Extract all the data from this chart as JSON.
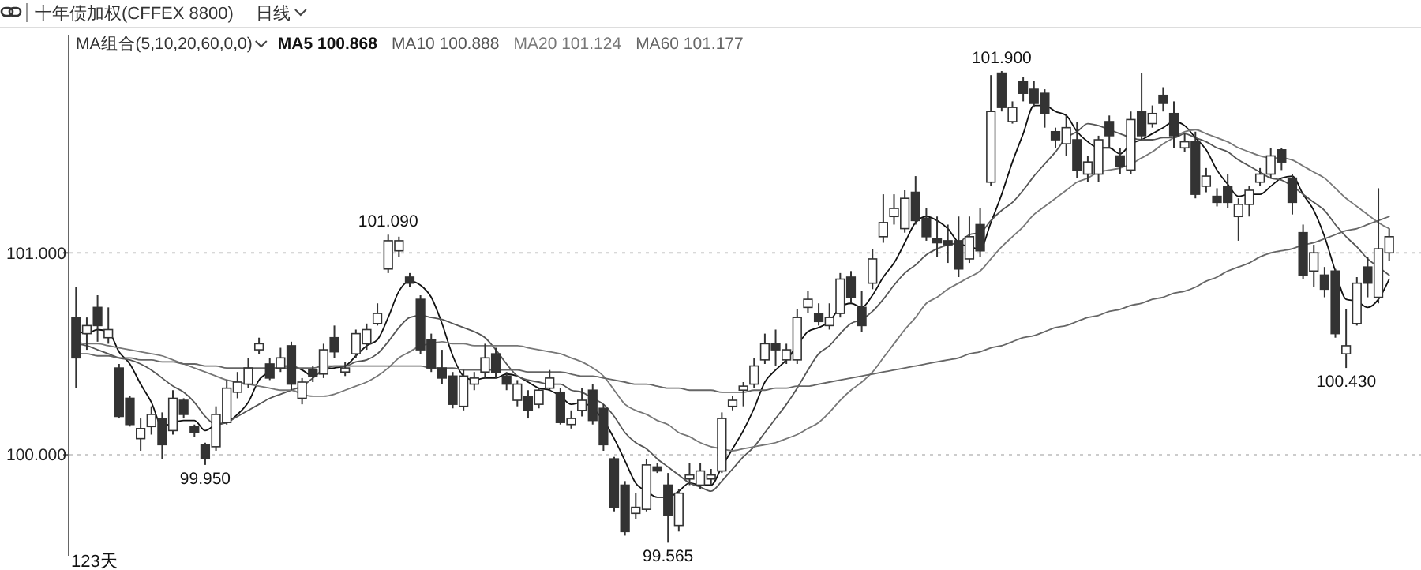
{
  "chart_data": {
    "type": "candlestick",
    "title": "十年债加权(CFFEX 8800)",
    "subtitle": "日线",
    "annotations": [
      "MA组合(5,10,20,60,0,0)",
      "123天",
      {
        "text": "101.090",
        "y": 101.09
      },
      {
        "text": "99.950",
        "y": 99.95
      },
      {
        "text": "99.565",
        "y": 99.565
      },
      {
        "text": "101.900",
        "y": 101.9
      },
      {
        "text": "100.430",
        "y": 100.43
      }
    ],
    "categories": [
      null,
      null,
      null,
      null,
      null,
      null,
      null,
      null,
      null,
      null,
      null,
      null,
      null,
      null,
      null,
      null,
      null,
      null,
      null,
      null,
      null,
      null,
      null,
      null,
      null,
      null,
      null,
      null,
      null,
      null,
      null,
      null,
      null,
      null,
      null,
      null,
      null,
      null,
      null,
      null,
      null,
      null,
      null,
      null,
      null,
      null,
      null,
      null,
      null,
      null,
      null,
      null,
      null,
      null,
      null,
      null,
      null,
      null,
      null,
      null,
      null,
      null,
      null,
      null,
      null,
      null,
      null,
      null,
      null,
      null,
      null,
      null,
      null,
      null,
      null,
      null,
      null,
      null,
      null,
      null,
      null,
      null,
      null,
      null,
      null,
      null,
      null,
      null,
      null,
      null,
      null,
      null,
      null,
      null,
      null,
      null,
      null,
      null,
      null,
      null,
      null,
      null,
      null,
      null,
      null,
      null,
      null,
      null,
      null,
      null,
      null,
      null,
      null,
      null,
      null,
      null,
      null,
      null,
      null,
      null,
      null,
      null,
      null
    ],
    "ohlc": [
      [
        100.68,
        100.83,
        100.33,
        100.48
      ],
      [
        100.6,
        100.68,
        100.52,
        100.64
      ],
      [
        100.73,
        100.79,
        100.56,
        100.64
      ],
      [
        100.58,
        100.73,
        100.55,
        100.62
      ],
      [
        100.43,
        100.45,
        100.18,
        100.19
      ],
      [
        100.28,
        100.29,
        100.14,
        100.15
      ],
      [
        100.08,
        100.18,
        100.02,
        100.13
      ],
      [
        100.14,
        100.24,
        100.1,
        100.2
      ],
      [
        100.18,
        100.21,
        99.98,
        100.05
      ],
      [
        100.12,
        100.32,
        100.1,
        100.28
      ],
      [
        100.27,
        100.28,
        100.18,
        100.2
      ],
      [
        100.14,
        100.15,
        100.09,
        100.11
      ],
      [
        100.05,
        100.06,
        99.95,
        99.98
      ],
      [
        100.04,
        100.24,
        100.02,
        100.2
      ],
      [
        100.16,
        100.37,
        100.15,
        100.33
      ],
      [
        100.31,
        100.41,
        100.28,
        100.36
      ],
      [
        100.35,
        100.48,
        100.33,
        100.43
      ],
      [
        100.52,
        100.58,
        100.5,
        100.55
      ],
      [
        100.45,
        100.48,
        100.37,
        100.38
      ],
      [
        100.43,
        100.53,
        100.41,
        100.48
      ],
      [
        100.54,
        100.56,
        100.32,
        100.35
      ],
      [
        100.28,
        100.38,
        100.25,
        100.36
      ],
      [
        100.42,
        100.44,
        100.36,
        100.39
      ],
      [
        100.4,
        100.55,
        100.38,
        100.52
      ],
      [
        100.58,
        100.64,
        100.48,
        100.51
      ],
      [
        100.41,
        100.46,
        100.39,
        100.43
      ],
      [
        100.5,
        100.62,
        100.48,
        100.6
      ],
      [
        100.55,
        100.65,
        100.52,
        100.62
      ],
      [
        100.65,
        100.75,
        100.64,
        100.7
      ],
      [
        100.92,
        101.09,
        100.9,
        101.06
      ],
      [
        101.01,
        101.08,
        100.98,
        101.06
      ],
      [
        100.88,
        100.9,
        100.83,
        100.85
      ],
      [
        100.77,
        100.79,
        100.5,
        100.52
      ],
      [
        100.57,
        100.6,
        100.41,
        100.43
      ],
      [
        100.43,
        100.52,
        100.35,
        100.38
      ],
      [
        100.39,
        100.41,
        100.23,
        100.25
      ],
      [
        100.24,
        100.42,
        100.22,
        100.39
      ],
      [
        100.35,
        100.41,
        100.32,
        100.38
      ],
      [
        100.41,
        100.55,
        100.38,
        100.48
      ],
      [
        100.5,
        100.53,
        100.38,
        100.41
      ],
      [
        100.39,
        100.41,
        100.32,
        100.35
      ],
      [
        100.27,
        100.37,
        100.24,
        100.35
      ],
      [
        100.29,
        100.32,
        100.18,
        100.22
      ],
      [
        100.25,
        100.33,
        100.23,
        100.32
      ],
      [
        100.33,
        100.42,
        100.32,
        100.38
      ],
      [
        100.31,
        100.33,
        100.15,
        100.16
      ],
      [
        100.15,
        100.22,
        100.13,
        100.18
      ],
      [
        100.22,
        100.33,
        100.19,
        100.27
      ],
      [
        100.32,
        100.35,
        100.15,
        100.17
      ],
      [
        100.23,
        100.25,
        100.02,
        100.05
      ],
      [
        99.98,
        99.99,
        99.72,
        99.74
      ],
      [
        99.85,
        99.87,
        99.6,
        99.62
      ],
      [
        99.71,
        99.81,
        99.68,
        99.74
      ],
      [
        99.73,
        99.98,
        99.72,
        99.95
      ],
      [
        99.94,
        99.96,
        99.91,
        99.92
      ],
      [
        99.85,
        99.91,
        99.565,
        99.7
      ],
      [
        99.65,
        99.83,
        99.62,
        99.81
      ],
      [
        99.88,
        99.96,
        99.85,
        99.9
      ],
      [
        99.85,
        99.96,
        99.83,
        99.92
      ],
      [
        99.88,
        99.93,
        99.85,
        99.9
      ],
      [
        99.92,
        100.21,
        99.91,
        100.18
      ],
      [
        100.24,
        100.29,
        100.22,
        100.27
      ],
      [
        100.32,
        100.36,
        100.24,
        100.34
      ],
      [
        100.35,
        100.48,
        100.33,
        100.44
      ],
      [
        100.47,
        100.6,
        100.45,
        100.55
      ],
      [
        100.55,
        100.62,
        100.44,
        100.52
      ],
      [
        100.47,
        100.55,
        100.45,
        100.52
      ],
      [
        100.47,
        100.72,
        100.45,
        100.68
      ],
      [
        100.73,
        100.81,
        100.7,
        100.77
      ],
      [
        100.7,
        100.75,
        100.64,
        100.66
      ],
      [
        100.64,
        100.75,
        100.62,
        100.68
      ],
      [
        100.7,
        100.9,
        100.68,
        100.87
      ],
      [
        100.88,
        100.91,
        100.75,
        100.78
      ],
      [
        100.73,
        100.81,
        100.61,
        100.64
      ],
      [
        100.85,
        101.02,
        100.82,
        100.97
      ],
      [
        101.08,
        101.29,
        101.05,
        101.15
      ],
      [
        101.18,
        101.29,
        101.14,
        101.22
      ],
      [
        101.12,
        101.31,
        101.1,
        101.27
      ],
      [
        101.3,
        101.38,
        101.14,
        101.16
      ],
      [
        101.17,
        101.22,
        101.06,
        101.08
      ],
      [
        101.07,
        101.18,
        100.98,
        101.05
      ],
      [
        101.06,
        101.14,
        100.95,
        101.04
      ],
      [
        101.06,
        101.18,
        100.88,
        100.92
      ],
      [
        100.97,
        101.18,
        100.95,
        101.08
      ],
      [
        101.14,
        101.22,
        100.98,
        101.01
      ],
      [
        101.35,
        101.88,
        101.33,
        101.7
      ],
      [
        101.89,
        101.9,
        101.7,
        101.72
      ],
      [
        101.65,
        101.75,
        101.64,
        101.72
      ],
      [
        101.85,
        101.87,
        101.75,
        101.79
      ],
      [
        101.81,
        101.85,
        101.72,
        101.74
      ],
      [
        101.79,
        101.81,
        101.62,
        101.69
      ],
      [
        101.6,
        101.62,
        101.52,
        101.56
      ],
      [
        101.54,
        101.68,
        101.48,
        101.62
      ],
      [
        101.56,
        101.65,
        101.37,
        101.41
      ],
      [
        101.39,
        101.48,
        101.35,
        101.45
      ],
      [
        101.39,
        101.58,
        101.35,
        101.56
      ],
      [
        101.65,
        101.68,
        101.52,
        101.58
      ],
      [
        101.48,
        101.52,
        101.39,
        101.43
      ],
      [
        101.41,
        101.7,
        101.39,
        101.66
      ],
      [
        101.7,
        101.89,
        101.56,
        101.58
      ],
      [
        101.64,
        101.73,
        101.62,
        101.69
      ],
      [
        101.78,
        101.82,
        101.7,
        101.74
      ],
      [
        101.69,
        101.75,
        101.52,
        101.58
      ],
      [
        101.52,
        101.59,
        101.5,
        101.55
      ],
      [
        101.55,
        101.6,
        101.27,
        101.29
      ],
      [
        101.33,
        101.42,
        101.3,
        101.38
      ],
      [
        101.28,
        101.32,
        101.23,
        101.25
      ],
      [
        101.33,
        101.39,
        101.22,
        101.25
      ],
      [
        101.18,
        101.27,
        101.06,
        101.24
      ],
      [
        101.24,
        101.33,
        101.18,
        101.31
      ],
      [
        101.35,
        101.42,
        101.33,
        101.39
      ],
      [
        101.39,
        101.52,
        101.37,
        101.48
      ],
      [
        101.51,
        101.52,
        101.41,
        101.45
      ],
      [
        101.37,
        101.39,
        101.19,
        101.25
      ],
      [
        101.1,
        101.14,
        100.87,
        100.89
      ],
      [
        100.91,
        101.04,
        100.83,
        101.0
      ],
      [
        100.89,
        100.93,
        100.78,
        100.82
      ],
      [
        100.91,
        100.92,
        100.58,
        100.6
      ],
      [
        100.5,
        100.72,
        100.43,
        100.54
      ],
      [
        100.65,
        100.88,
        100.64,
        100.85
      ],
      [
        100.93,
        100.98,
        100.78,
        100.85
      ],
      [
        100.78,
        101.32,
        100.75,
        101.02
      ],
      [
        101.0,
        101.12,
        100.96,
        101.08
      ]
    ],
    "series": [
      {
        "name": "MA5 100.868",
        "type": "line",
        "color": "#111111",
        "values": [
          100.62,
          100.6,
          100.62,
          100.61,
          100.51,
          100.45,
          100.35,
          100.26,
          100.14,
          100.16,
          100.17,
          100.17,
          100.12,
          100.15,
          100.16,
          100.2,
          100.26,
          100.37,
          100.41,
          100.44,
          100.44,
          100.42,
          100.39,
          100.42,
          100.43,
          100.44,
          100.49,
          100.54,
          100.57,
          100.68,
          100.81,
          100.86,
          100.84,
          100.78,
          100.65,
          100.49,
          100.39,
          100.37,
          100.38,
          100.38,
          100.4,
          100.39,
          100.36,
          100.33,
          100.32,
          100.29,
          100.25,
          100.26,
          100.23,
          100.17,
          100.08,
          99.97,
          99.86,
          99.82,
          99.79,
          99.79,
          99.82,
          99.86,
          99.85,
          99.85,
          99.94,
          100.03,
          100.12,
          100.23,
          100.36,
          100.42,
          100.47,
          100.54,
          100.61,
          100.63,
          100.66,
          100.73,
          100.75,
          100.73,
          100.79,
          100.88,
          100.95,
          101.05,
          101.15,
          101.18,
          101.16,
          101.12,
          101.05,
          101.03,
          101.02,
          101.15,
          101.29,
          101.45,
          101.59,
          101.73,
          101.73,
          101.7,
          101.68,
          101.6,
          101.55,
          101.52,
          101.52,
          101.49,
          101.54,
          101.56,
          101.59,
          101.62,
          101.65,
          101.63,
          101.57,
          101.51,
          101.41,
          101.34,
          101.28,
          101.29,
          101.29,
          101.33,
          101.37,
          101.38,
          101.29,
          101.21,
          101.08,
          100.91,
          100.77,
          100.76,
          100.73,
          100.77,
          100.87
        ]
      },
      {
        "name": "MA10 100.888",
        "type": "line",
        "color": "#555555",
        "values": [
          100.55,
          100.54,
          100.52,
          100.5,
          100.48,
          100.47,
          100.45,
          100.42,
          100.38,
          100.34,
          100.31,
          100.26,
          100.19,
          100.15,
          100.16,
          100.19,
          100.22,
          100.25,
          100.28,
          100.3,
          100.32,
          100.34,
          100.38,
          100.42,
          100.44,
          100.44,
          100.46,
          100.47,
          100.5,
          100.56,
          100.63,
          100.68,
          100.69,
          100.68,
          100.67,
          100.65,
          100.63,
          100.61,
          100.58,
          100.52,
          100.45,
          100.39,
          100.37,
          100.36,
          100.35,
          100.35,
          100.32,
          100.31,
          100.28,
          100.25,
          100.19,
          100.11,
          100.06,
          100.03,
          99.98,
          99.94,
          99.9,
          99.86,
          99.84,
          99.82,
          99.87,
          99.93,
          99.99,
          100.04,
          100.11,
          100.18,
          100.25,
          100.33,
          100.42,
          100.5,
          100.54,
          100.6,
          100.65,
          100.67,
          100.71,
          100.77,
          100.84,
          100.9,
          100.94,
          100.99,
          101.02,
          101.04,
          101.05,
          101.09,
          101.1,
          101.16,
          101.21,
          101.25,
          101.31,
          101.38,
          101.44,
          101.5,
          101.57,
          101.6,
          101.64,
          101.63,
          101.61,
          101.59,
          101.57,
          101.56,
          101.56,
          101.57,
          101.57,
          101.59,
          101.57,
          101.55,
          101.52,
          101.5,
          101.46,
          101.43,
          101.4,
          101.37,
          101.36,
          101.33,
          101.29,
          101.25,
          101.21,
          101.14,
          101.08,
          101.03,
          100.97,
          100.93,
          100.89
        ]
      },
      {
        "name": "MA20 101.124",
        "type": "line",
        "color": "#777777",
        "values": [
          100.56,
          100.55,
          100.55,
          100.54,
          100.53,
          100.52,
          100.51,
          100.5,
          100.49,
          100.47,
          100.45,
          100.43,
          100.41,
          100.39,
          100.37,
          100.36,
          100.35,
          100.34,
          100.33,
          100.32,
          100.32,
          100.3,
          100.29,
          100.29,
          100.3,
          100.32,
          100.34,
          100.36,
          100.39,
          100.43,
          100.48,
          100.51,
          100.54,
          100.55,
          100.56,
          100.55,
          100.55,
          100.54,
          100.54,
          100.54,
          100.54,
          100.54,
          100.53,
          100.52,
          100.51,
          100.5,
          100.48,
          100.46,
          100.43,
          100.39,
          100.32,
          100.25,
          100.22,
          100.2,
          100.17,
          100.15,
          100.11,
          100.09,
          100.06,
          100.04,
          100.03,
          100.02,
          100.03,
          100.04,
          100.05,
          100.06,
          100.08,
          100.1,
          100.13,
          100.16,
          100.21,
          100.27,
          100.32,
          100.36,
          100.41,
          100.48,
          100.55,
          100.62,
          100.68,
          100.75,
          100.78,
          100.82,
          100.85,
          100.88,
          100.91,
          100.97,
          101.03,
          101.08,
          101.13,
          101.19,
          101.23,
          101.27,
          101.31,
          101.35,
          101.37,
          101.4,
          101.41,
          101.42,
          101.44,
          101.47,
          101.5,
          101.54,
          101.57,
          101.6,
          101.61,
          101.59,
          101.57,
          101.55,
          101.52,
          101.5,
          101.48,
          101.47,
          101.47,
          101.46,
          101.43,
          101.4,
          101.37,
          101.32,
          101.27,
          101.23,
          101.19,
          101.15,
          101.12
        ]
      },
      {
        "name": "MA60 101.177",
        "type": "line",
        "color": "#666666",
        "values": [
          100.5,
          100.5,
          100.49,
          100.49,
          100.48,
          100.48,
          100.47,
          100.47,
          100.46,
          100.46,
          100.45,
          100.45,
          100.44,
          100.44,
          100.43,
          100.43,
          100.43,
          100.43,
          100.43,
          100.43,
          100.43,
          100.43,
          100.43,
          100.44,
          100.44,
          100.44,
          100.44,
          100.44,
          100.44,
          100.44,
          100.44,
          100.44,
          100.44,
          100.43,
          100.43,
          100.43,
          100.42,
          100.42,
          100.42,
          100.42,
          100.42,
          100.42,
          100.41,
          100.41,
          100.41,
          100.41,
          100.4,
          100.39,
          100.39,
          100.38,
          100.37,
          100.36,
          100.35,
          100.35,
          100.34,
          100.33,
          100.33,
          100.32,
          100.32,
          100.32,
          100.31,
          100.31,
          100.31,
          100.32,
          100.32,
          100.33,
          100.33,
          100.34,
          100.34,
          100.35,
          100.36,
          100.37,
          100.38,
          100.39,
          100.4,
          100.41,
          100.42,
          100.43,
          100.44,
          100.45,
          100.46,
          100.47,
          100.48,
          100.5,
          100.51,
          100.53,
          100.54,
          100.56,
          100.58,
          100.59,
          100.61,
          100.63,
          100.64,
          100.66,
          100.68,
          100.69,
          100.71,
          100.72,
          100.74,
          100.75,
          100.77,
          100.78,
          100.8,
          100.81,
          100.83,
          100.86,
          100.88,
          100.91,
          100.93,
          100.95,
          100.98,
          101.0,
          101.01,
          101.02,
          101.04,
          101.05,
          101.07,
          101.09,
          101.11,
          101.12,
          101.14,
          101.16,
          101.18
        ]
      }
    ],
    "ylim": [
      99.5,
      102.08
    ],
    "yticks": [
      {
        "value": 100,
        "label": "100.000"
      },
      {
        "value": 101,
        "label": "101.000"
      }
    ],
    "grid": "y",
    "legend": "top left"
  }
}
